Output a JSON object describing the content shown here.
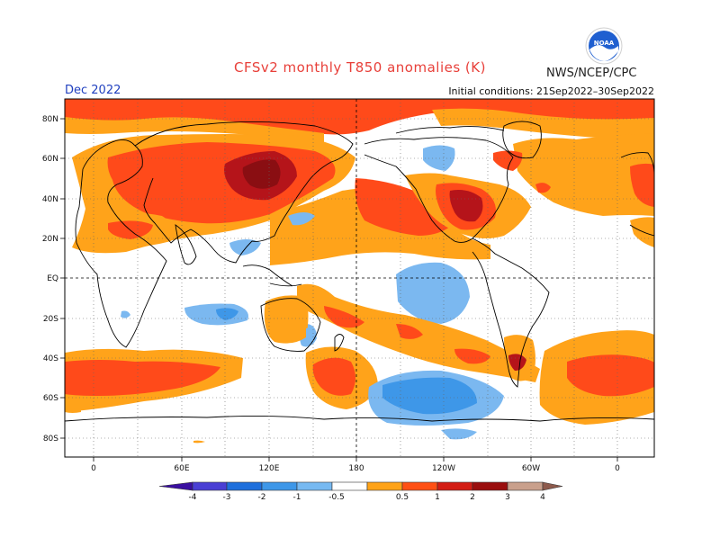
{
  "header": {
    "title": "CFSv2 monthly T850 anomalies (K)",
    "agency": "NWS/NCEP/CPC",
    "logo_text": "NOAA",
    "month": "Dec 2022",
    "initial_conditions": "Initial conditions: 21Sep2022–30Sep2022"
  },
  "map": {
    "projection": "cylindrical equidistant",
    "center_longitude": 180,
    "lat_labels": [
      "80N",
      "60N",
      "40N",
      "20N",
      "EQ",
      "20S",
      "40S",
      "60S",
      "80S"
    ],
    "lon_labels": [
      "0",
      "60E",
      "120E",
      "180",
      "120W",
      "60W",
      "0"
    ],
    "grid": "dotted, 20° lat / 30° lon"
  },
  "colorbar": {
    "labels": [
      "-4",
      "-3",
      "-2",
      "-1",
      "-0.5",
      "0.5",
      "1",
      "2",
      "3",
      "4"
    ],
    "colors": [
      "#3a0fa0",
      "#4a3fd4",
      "#1e6fdc",
      "#3e97e8",
      "#77b9f1",
      "#ffffff",
      "#ffa318",
      "#ff5014",
      "#d31d14",
      "#9a0e0e",
      "#c9a08c",
      "#8d5a4c"
    ]
  },
  "colors": {
    "warm1": "#ffa31a",
    "warm2": "#ff4a1a",
    "warm3": "#b5141a",
    "warm4": "#8a0e12",
    "cool1": "#7bb8f0",
    "cool2": "#3e97e8"
  }
}
